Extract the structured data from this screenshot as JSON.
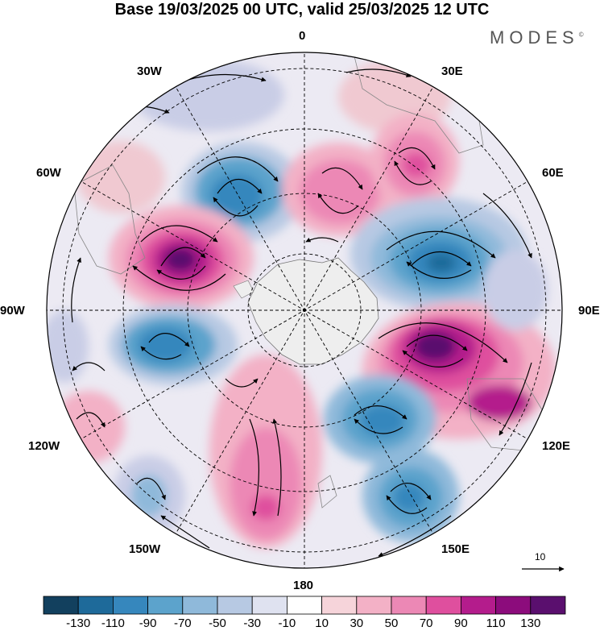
{
  "title": "Base 19/03/2025 00 UTC, valid 25/03/2025 12 UTC",
  "brand": "MODES",
  "brand_mark": "©",
  "longitude_labels": {
    "lon_0": "0",
    "lon_30e": "30E",
    "lon_60e": "60E",
    "lon_90e": "90E",
    "lon_120e": "120E",
    "lon_150e": "150E",
    "lon_180": "180",
    "lon_150w": "150W",
    "lon_120w": "120W",
    "lon_90w": "90W",
    "lon_60w": "60W",
    "lon_30w": "30W"
  },
  "reference_vector": {
    "label": "10"
  },
  "colorbar": {
    "labels": [
      "-130",
      "-110",
      "-90",
      "-70",
      "-50",
      "-30",
      "-10",
      "10",
      "30",
      "50",
      "70",
      "90",
      "110",
      "130"
    ],
    "colors": [
      "#12405e",
      "#1e6a9a",
      "#3687bd",
      "#5ca3cc",
      "#8fb9da",
      "#b7c9e3",
      "#dfe2f0",
      "#ffffff",
      "#f6d4da",
      "#f3b1c6",
      "#ec88b5",
      "#df4f9e",
      "#b41c8c",
      "#8c0c7c",
      "#5a0f6e"
    ]
  },
  "map_features": {
    "projection": "south polar stereographic",
    "field": "shaded anomaly with wind vectors",
    "icons": [
      "antarctica-landmass",
      "wind-arrow",
      "reference-vector-arrow"
    ]
  }
}
